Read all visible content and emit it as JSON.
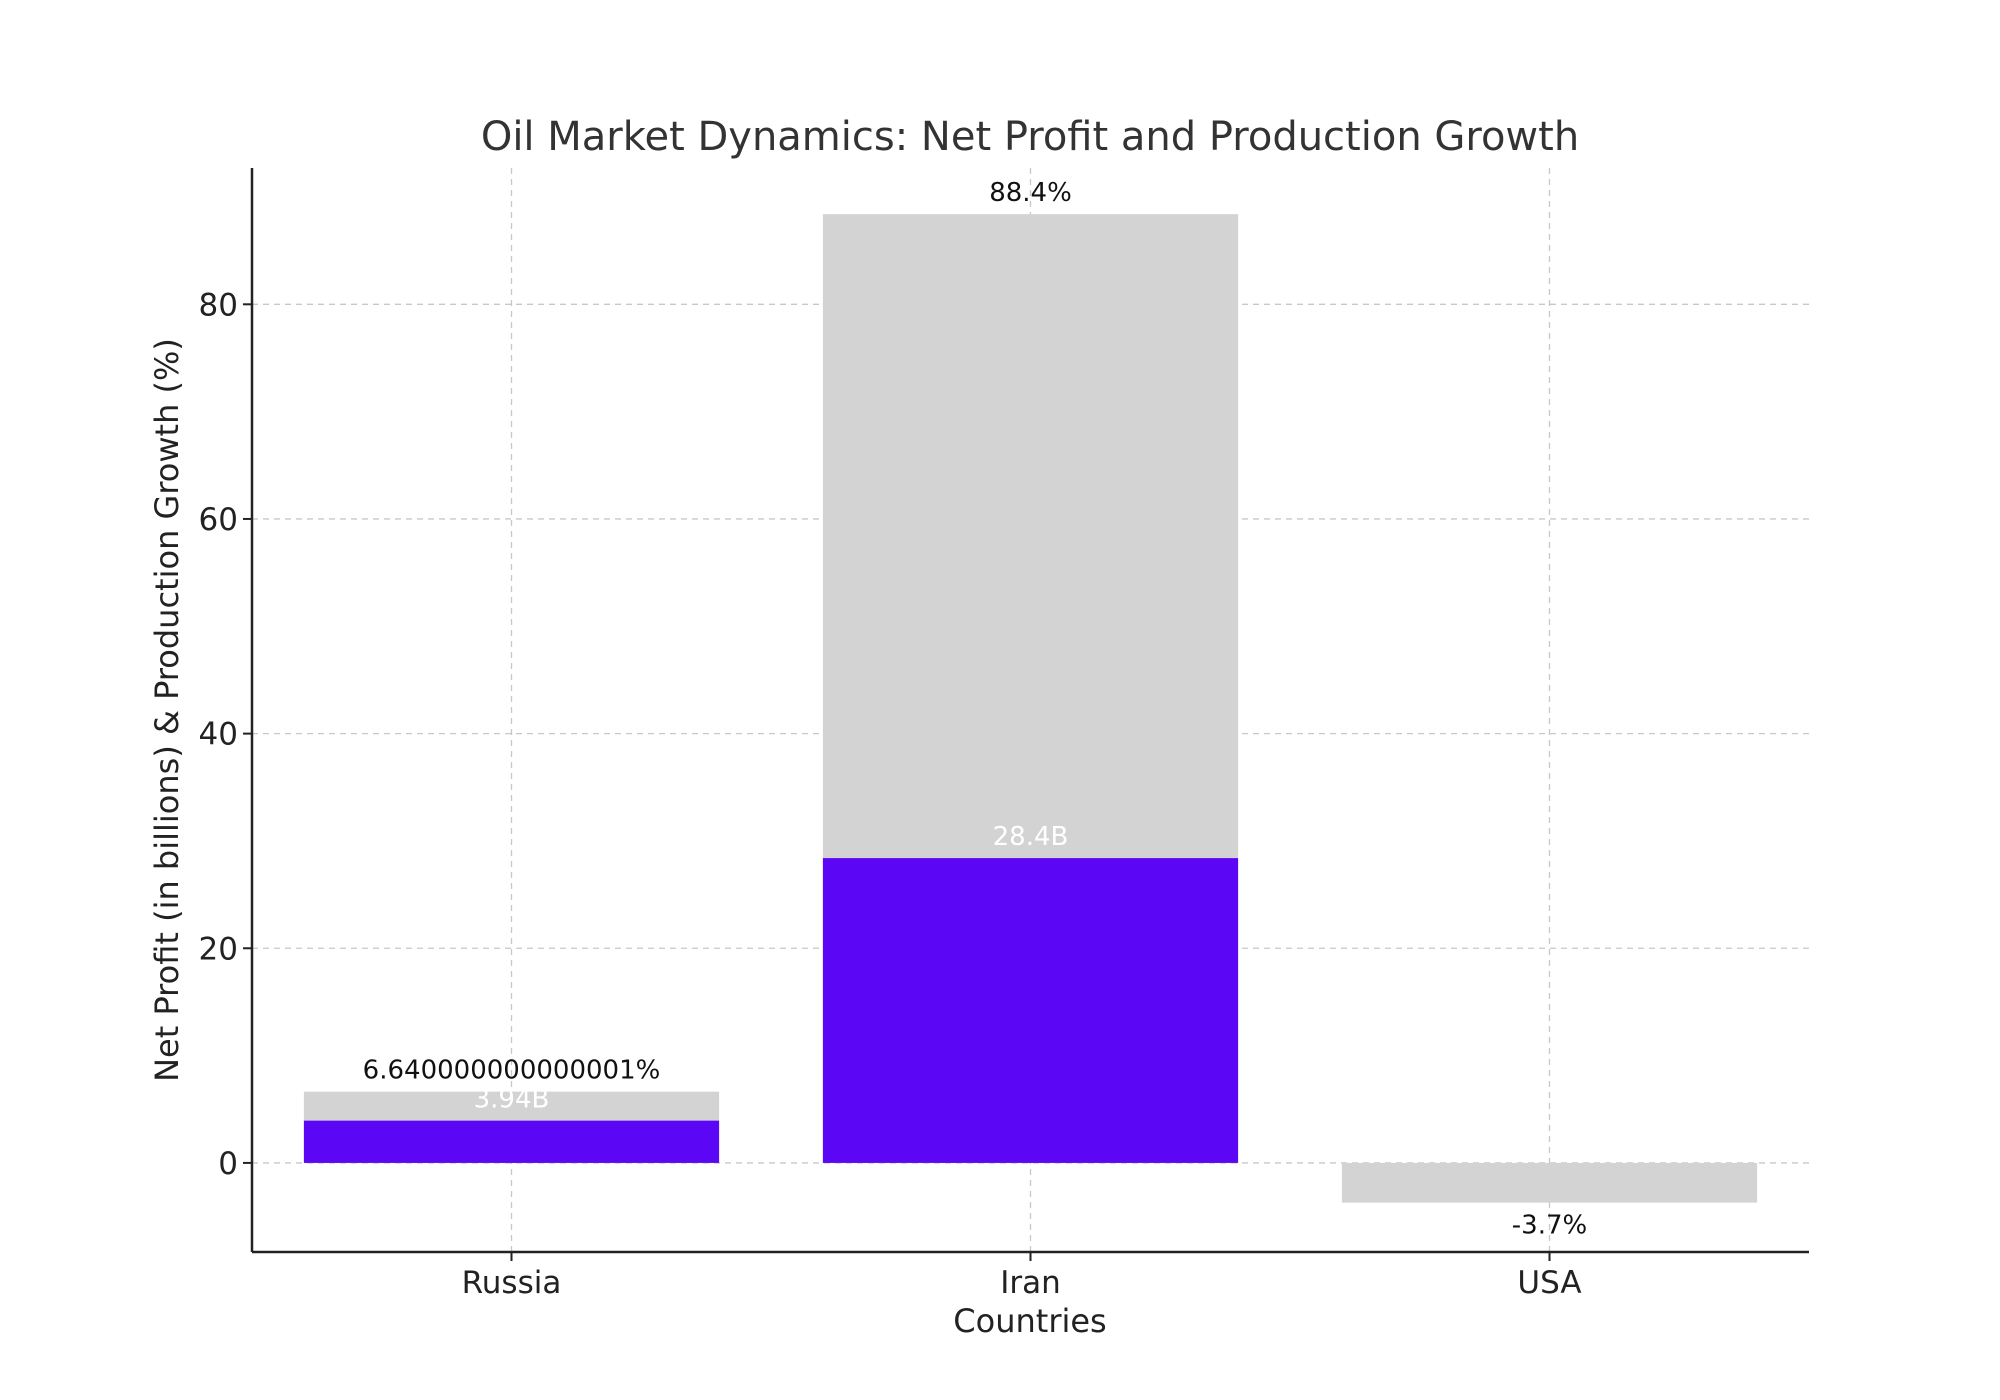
{
  "chart_data": {
    "type": "bar",
    "title": "Oil Market Dynamics: Net Profit and Production Growth",
    "xlabel": "Countries",
    "ylabel": "Net Profit (in billions) & Production Growth (%)",
    "categories": [
      "Russia",
      "Iran",
      "USA"
    ],
    "series": [
      {
        "values": [
          6.640000000000001,
          88.4,
          -3.7
        ],
        "labels": [
          "6.640000000000001%",
          "88.4%",
          "-3.7%"
        ],
        "color": "#d3d3d3"
      },
      {
        "values": [
          3.94,
          28.4,
          null
        ],
        "labels": [
          "3.94B",
          "28.4B",
          ""
        ],
        "color": "#5b06f5"
      }
    ],
    "ylim": [
      -8.3,
      92.7
    ],
    "yticks": [
      0,
      20,
      40,
      60,
      80
    ],
    "grid": true,
    "colors": {
      "growth_bar": "#d3d3d3",
      "profit_bar": "#5b06f5",
      "growth_label": "#111111",
      "profit_label": "#ffffff"
    }
  }
}
